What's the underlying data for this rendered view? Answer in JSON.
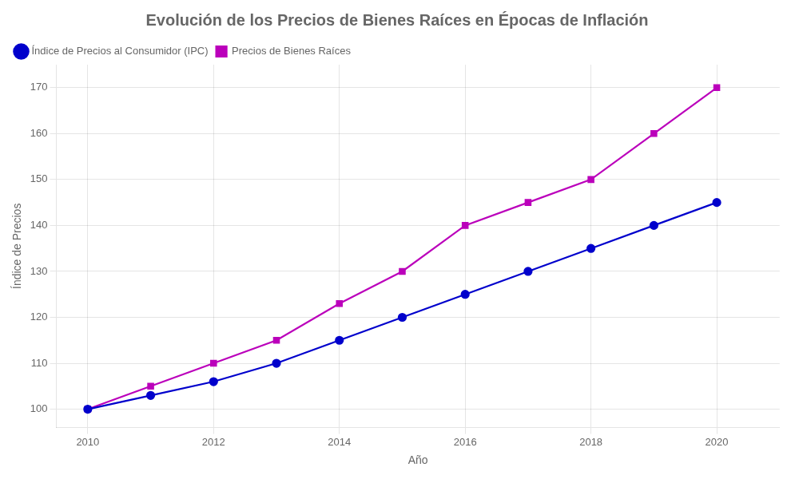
{
  "chart_data": {
    "type": "line",
    "title": "Evolución de los Precios de Bienes Raíces en Épocas de Inflación",
    "xlabel": "Año",
    "ylabel": "Índice de Precios",
    "x": [
      2010,
      2011,
      2012,
      2013,
      2014,
      2015,
      2016,
      2017,
      2018,
      2019,
      2020
    ],
    "series": [
      {
        "name": "Índice de Precios al Consumidor (IPC)",
        "color": "#0000cc",
        "marker": "circle",
        "values": [
          100,
          103,
          106,
          110,
          115,
          120,
          125,
          130,
          135,
          140,
          145
        ]
      },
      {
        "name": "Precios de Bienes Raíces",
        "color": "#bb00bb",
        "marker": "square",
        "values": [
          100,
          105,
          110,
          115,
          123,
          130,
          140,
          145,
          150,
          160,
          170
        ]
      }
    ],
    "xlim": [
      2009.5,
      2021.0
    ],
    "xticks": [
      2010,
      2012,
      2014,
      2016,
      2018,
      2020
    ],
    "ylim": [
      96,
      175
    ],
    "yticks": [
      100,
      110,
      120,
      130,
      140,
      150,
      160,
      170
    ],
    "grid": true,
    "legend": "upper left"
  }
}
